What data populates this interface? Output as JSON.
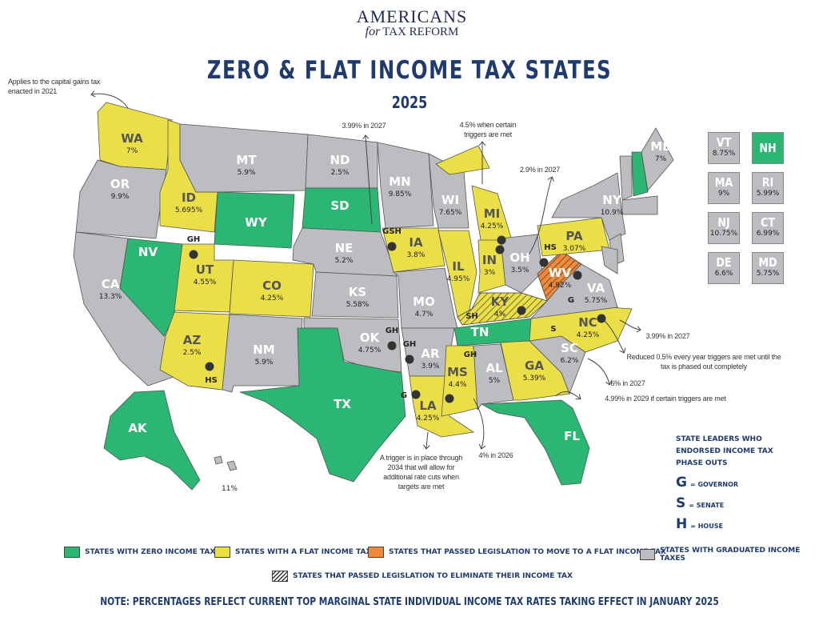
{
  "logo": {
    "line1": "AMERICANS",
    "for": "for",
    "line2": "TAX REFORM"
  },
  "title": "ZERO & FLAT INCOME TAX STATES",
  "year": "2025",
  "colors": {
    "zero": "#2bb673",
    "flat": "#ebdf47",
    "moving_flat": "#f08a3a",
    "graduated": "#bcbdc0",
    "navy": "#1f3a6e"
  },
  "states": [
    {
      "abbr": "WA",
      "rate": "7%",
      "category": "flat"
    },
    {
      "abbr": "OR",
      "rate": "9.9%",
      "category": "graduated"
    },
    {
      "abbr": "CA",
      "rate": "13.3%",
      "category": "graduated"
    },
    {
      "abbr": "NV",
      "rate": "",
      "category": "zero"
    },
    {
      "abbr": "ID",
      "rate": "5.695%",
      "category": "flat"
    },
    {
      "abbr": "MT",
      "rate": "5.9%",
      "category": "graduated"
    },
    {
      "abbr": "WY",
      "rate": "",
      "category": "zero"
    },
    {
      "abbr": "UT",
      "rate": "4.55%",
      "category": "flat",
      "leaders": "GH"
    },
    {
      "abbr": "CO",
      "rate": "4.25%",
      "category": "flat"
    },
    {
      "abbr": "AZ",
      "rate": "2.5%",
      "category": "flat",
      "leaders": "HS"
    },
    {
      "abbr": "NM",
      "rate": "5.9%",
      "category": "graduated"
    },
    {
      "abbr": "ND",
      "rate": "2.5%",
      "category": "graduated"
    },
    {
      "abbr": "SD",
      "rate": "",
      "category": "zero"
    },
    {
      "abbr": "NE",
      "rate": "5.2%",
      "category": "graduated"
    },
    {
      "abbr": "KS",
      "rate": "5.58%",
      "category": "graduated"
    },
    {
      "abbr": "OK",
      "rate": "4.75%",
      "category": "graduated",
      "leaders": "GH"
    },
    {
      "abbr": "TX",
      "rate": "",
      "category": "zero"
    },
    {
      "abbr": "MN",
      "rate": "9.85%",
      "category": "graduated"
    },
    {
      "abbr": "IA",
      "rate": "3.8%",
      "category": "flat",
      "leaders": "GSH"
    },
    {
      "abbr": "MO",
      "rate": "4.7%",
      "category": "graduated"
    },
    {
      "abbr": "AR",
      "rate": "3.9%",
      "category": "graduated",
      "leaders": "GH"
    },
    {
      "abbr": "LA",
      "rate": "4.25%",
      "category": "flat",
      "leaders": "G"
    },
    {
      "abbr": "WI",
      "rate": "7.65%",
      "category": "graduated"
    },
    {
      "abbr": "IL",
      "rate": "4.95%",
      "category": "flat"
    },
    {
      "abbr": "MI",
      "rate": "4.25%",
      "category": "flat"
    },
    {
      "abbr": "IN",
      "rate": "3%",
      "category": "flat"
    },
    {
      "abbr": "OH",
      "rate": "3.5%",
      "category": "graduated",
      "leaders": "HS"
    },
    {
      "abbr": "KY",
      "rate": "4%",
      "category": "flat",
      "eliminating": true,
      "leaders": "SH"
    },
    {
      "abbr": "TN",
      "rate": "",
      "category": "zero"
    },
    {
      "abbr": "MS",
      "rate": "4.4%",
      "category": "flat",
      "eliminating": true,
      "leaders": "GH"
    },
    {
      "abbr": "AL",
      "rate": "5%",
      "category": "graduated"
    },
    {
      "abbr": "GA",
      "rate": "5.39%",
      "category": "flat"
    },
    {
      "abbr": "FL",
      "rate": "",
      "category": "zero"
    },
    {
      "abbr": "SC",
      "rate": "6.2%",
      "category": "graduated"
    },
    {
      "abbr": "NC",
      "rate": "4.25%",
      "category": "flat",
      "leaders": "S"
    },
    {
      "abbr": "VA",
      "rate": "5.75%",
      "category": "graduated"
    },
    {
      "abbr": "WV",
      "rate": "4.92%",
      "category": "moving_flat",
      "eliminating": true,
      "leaders": "G"
    },
    {
      "abbr": "PA",
      "rate": "3.07%",
      "category": "flat"
    },
    {
      "abbr": "NY",
      "rate": "10.9%",
      "category": "graduated"
    },
    {
      "abbr": "ME",
      "rate": "7%",
      "category": "graduated"
    },
    {
      "abbr": "AK",
      "rate": "",
      "category": "zero"
    },
    {
      "abbr": "HI",
      "rate": "11%",
      "category": "graduated"
    }
  ],
  "small_states": [
    {
      "abbr": "VT",
      "rate": "8.75%",
      "category": "graduated"
    },
    {
      "abbr": "NH",
      "rate": "",
      "category": "zero"
    },
    {
      "abbr": "MA",
      "rate": "9%",
      "category": "graduated"
    },
    {
      "abbr": "RI",
      "rate": "5.99%",
      "category": "graduated"
    },
    {
      "abbr": "NJ",
      "rate": "10.75%",
      "category": "graduated"
    },
    {
      "abbr": "CT",
      "rate": "6.99%",
      "category": "graduated"
    },
    {
      "abbr": "DE",
      "rate": "6.6%",
      "category": "graduated"
    },
    {
      "abbr": "MD",
      "rate": "5.75%",
      "category": "graduated"
    }
  ],
  "annotations": [
    {
      "id": "wa",
      "text": "Applies to the capital gains tax enacted  in 2021"
    },
    {
      "id": "nd",
      "text": "3.99% in 2027"
    },
    {
      "id": "mi",
      "text": "4.5% when certain triggers are met"
    },
    {
      "id": "oh",
      "text": "2.9% in 2027"
    },
    {
      "id": "nc",
      "text": "3.99% in 2027"
    },
    {
      "id": "nc2",
      "text": "Reduced 0.5% every year triggers are met until the tax is phased out completely"
    },
    {
      "id": "sc",
      "text": "6% in 2027"
    },
    {
      "id": "ga",
      "text": "4.99% in 2029 if certain triggers are met"
    },
    {
      "id": "ms",
      "text": "4% in 2026"
    },
    {
      "id": "la",
      "text": "A trigger is in place through 2034 that will allow for additional rate cuts when targets are met"
    }
  ],
  "leaders_key": {
    "heading": "STATE LEADERS WHO ENDORSED INCOME TAX PHASE OUTS",
    "items": [
      {
        "letter": "G",
        "label": "= GOVERNOR"
      },
      {
        "letter": "S",
        "label": "= SENATE"
      },
      {
        "letter": "H",
        "label": "= HOUSE"
      }
    ]
  },
  "legend": [
    {
      "key": "zero",
      "label": "STATES WITH ZERO INCOME TAX"
    },
    {
      "key": "flat",
      "label": "STATES WITH A FLAT INCOME TAX"
    },
    {
      "key": "moving_flat",
      "label": "STATES THAT PASSED LEGISLATION TO MOVE TO A FLAT INCOME TAX"
    },
    {
      "key": "graduated",
      "label": "STATES WITH GRADUATED INCOME TAXES"
    },
    {
      "key": "hatched",
      "label": "STATES THAT PASSED LEGISLATION TO ELIMINATE THEIR INCOME TAX"
    }
  ],
  "footnote": "NOTE: PERCENTAGES REFLECT CURRENT TOP MARGINAL STATE INDIVIDUAL INCOME TAX RATES TAKING EFFECT IN JANUARY 2025"
}
